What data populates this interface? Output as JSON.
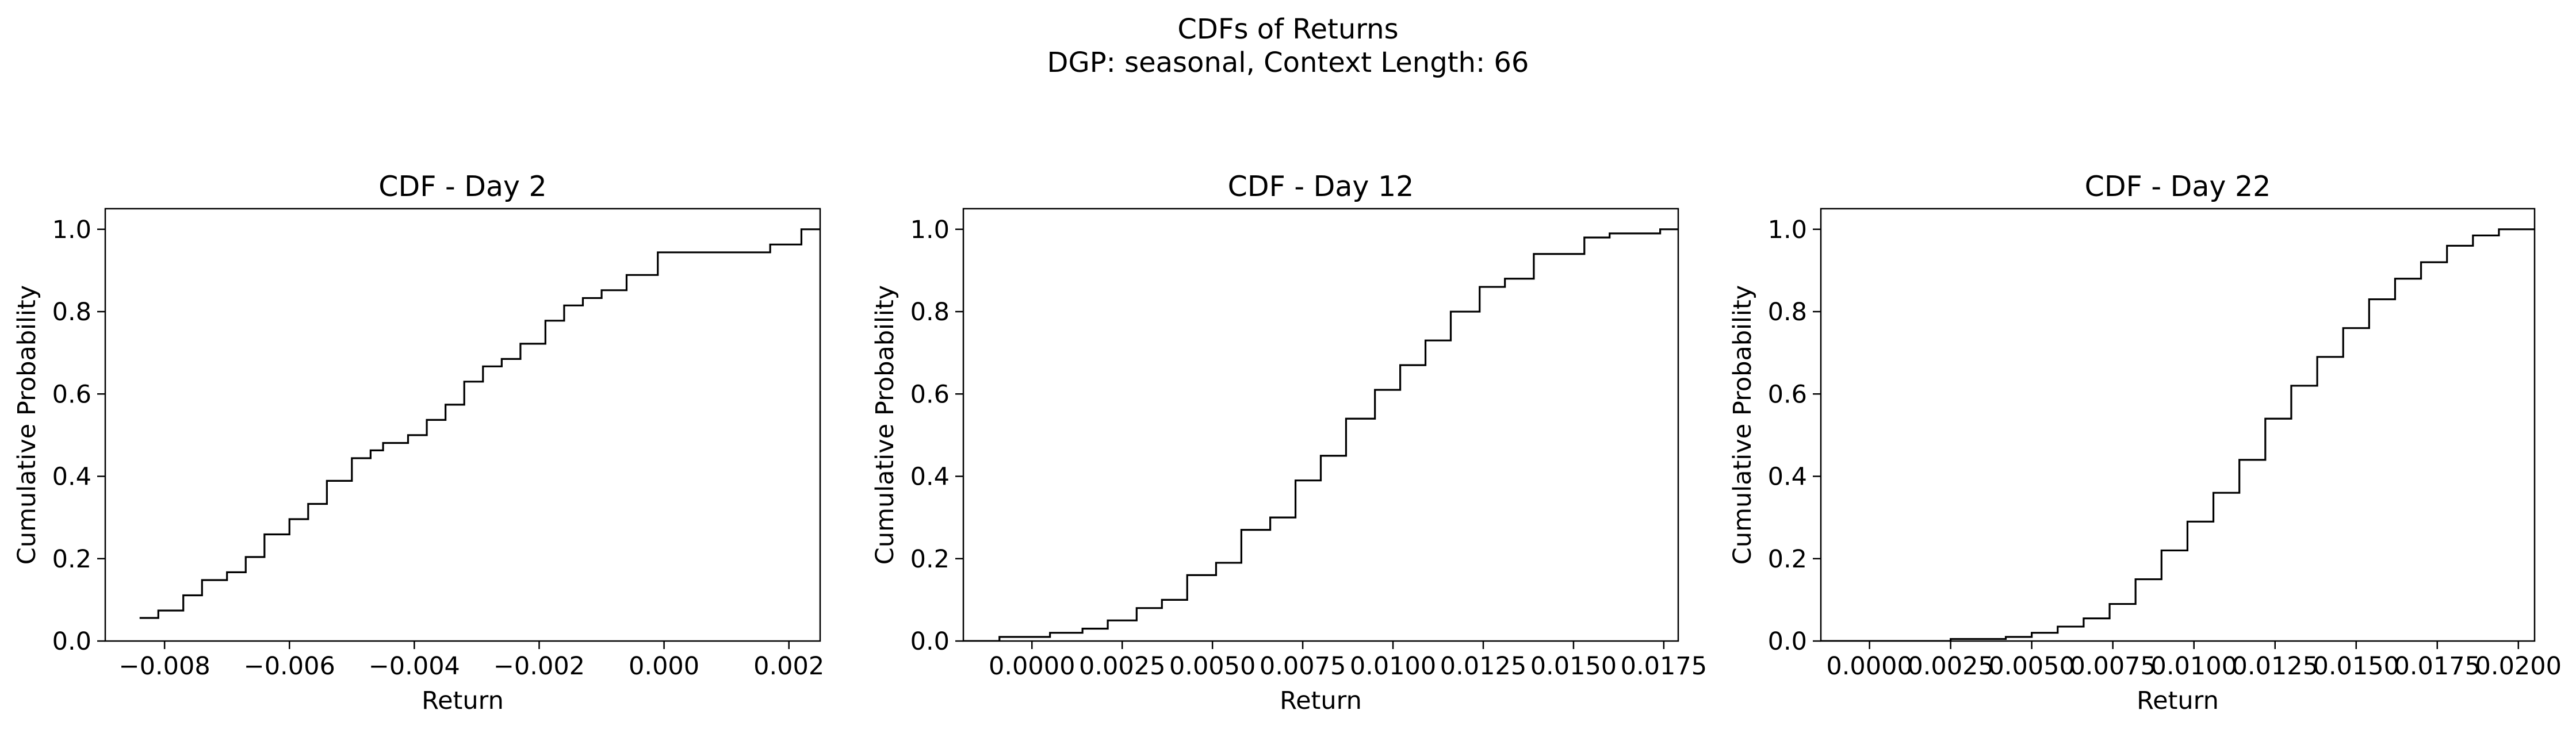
{
  "figure": {
    "title": "CDFs of Returns",
    "subtitle": "DGP: seasonal, Context Length: 66"
  },
  "chart_data": [
    {
      "type": "line",
      "step": "post",
      "title": "CDF - Day 2",
      "xlabel": "Return",
      "ylabel": "Cumulative Probability",
      "xlim": [
        -0.00895,
        0.0025
      ],
      "ylim": [
        0,
        1.05
      ],
      "xticks": [
        -0.008,
        -0.006,
        -0.004,
        -0.002,
        0.0,
        0.002
      ],
      "xtick_labels": [
        "−0.008",
        "−0.006",
        "−0.004",
        "−0.002",
        "0.000",
        "0.002"
      ],
      "yticks": [
        0.0,
        0.2,
        0.4,
        0.6,
        0.8,
        1.0
      ],
      "ytick_labels": [
        "0.0",
        "0.2",
        "0.4",
        "0.6",
        "0.8",
        "1.0"
      ],
      "grid": false,
      "color": "#000000",
      "x": [
        -0.0084,
        -0.0081,
        -0.0077,
        -0.0074,
        -0.007,
        -0.0067,
        -0.0064,
        -0.006,
        -0.0057,
        -0.0054,
        -0.005,
        -0.0047,
        -0.0045,
        -0.0041,
        -0.0038,
        -0.0035,
        -0.0032,
        -0.0029,
        -0.0026,
        -0.0023,
        -0.0019,
        -0.0016,
        -0.0013,
        -0.001,
        -0.0006,
        -0.0001,
        0.0017,
        0.0022
      ],
      "y": [
        0.056,
        0.074,
        0.111,
        0.148,
        0.167,
        0.204,
        0.259,
        0.296,
        0.333,
        0.389,
        0.444,
        0.463,
        0.481,
        0.5,
        0.537,
        0.574,
        0.63,
        0.667,
        0.685,
        0.722,
        0.778,
        0.815,
        0.833,
        0.852,
        0.889,
        0.944,
        0.963,
        1.0
      ]
    },
    {
      "type": "line",
      "step": "post",
      "title": "CDF - Day 12",
      "xlabel": "Return",
      "ylabel": "Cumulative Probability",
      "xlim": [
        -0.0019,
        0.0179
      ],
      "ylim": [
        0,
        1.05
      ],
      "xticks": [
        0.0,
        0.0025,
        0.005,
        0.0075,
        0.01,
        0.0125,
        0.015,
        0.0175
      ],
      "xtick_labels": [
        "0.0000",
        "0.0025",
        "0.0050",
        "0.0075",
        "0.0100",
        "0.0125",
        "0.0150",
        "0.0175"
      ],
      "yticks": [
        0.0,
        0.2,
        0.4,
        0.6,
        0.8,
        1.0
      ],
      "ytick_labels": [
        "0.0",
        "0.2",
        "0.4",
        "0.6",
        "0.8",
        "1.0"
      ],
      "grid": false,
      "color": "#000000",
      "x": [
        -0.0019,
        -0.0009,
        0.0005,
        0.0014,
        0.0021,
        0.0029,
        0.0036,
        0.0043,
        0.0051,
        0.0058,
        0.0066,
        0.0073,
        0.008,
        0.0087,
        0.0095,
        0.0102,
        0.0109,
        0.0116,
        0.0124,
        0.0131,
        0.0139,
        0.0153,
        0.016,
        0.0174
      ],
      "y": [
        0.0,
        0.01,
        0.02,
        0.03,
        0.05,
        0.08,
        0.1,
        0.16,
        0.19,
        0.27,
        0.3,
        0.39,
        0.45,
        0.54,
        0.61,
        0.67,
        0.73,
        0.8,
        0.86,
        0.88,
        0.94,
        0.98,
        0.99,
        1.0
      ]
    },
    {
      "type": "line",
      "step": "post",
      "title": "CDF - Day 22",
      "xlabel": "Return",
      "ylabel": "Cumulative Probability",
      "xlim": [
        -0.0015,
        0.0205
      ],
      "ylim": [
        0,
        1.05
      ],
      "xticks": [
        0.0,
        0.0025,
        0.005,
        0.0075,
        0.01,
        0.0125,
        0.015,
        0.0175,
        0.02
      ],
      "xtick_labels": [
        "0.0000",
        "0.0025",
        "0.0050",
        "0.0075",
        "0.0100",
        "0.0125",
        "0.0150",
        "0.0175",
        "0.0200"
      ],
      "yticks": [
        0.0,
        0.2,
        0.4,
        0.6,
        0.8,
        1.0
      ],
      "ytick_labels": [
        "0.0",
        "0.2",
        "0.4",
        "0.6",
        "0.8",
        "1.0"
      ],
      "grid": false,
      "color": "#000000",
      "x": [
        -0.0015,
        0.0025,
        0.0042,
        0.005,
        0.0058,
        0.0066,
        0.0074,
        0.0082,
        0.009,
        0.0098,
        0.0106,
        0.0114,
        0.0122,
        0.013,
        0.0138,
        0.0146,
        0.0154,
        0.0162,
        0.017,
        0.0178,
        0.0186,
        0.0194
      ],
      "y": [
        0.0,
        0.005,
        0.01,
        0.02,
        0.035,
        0.055,
        0.09,
        0.15,
        0.22,
        0.29,
        0.36,
        0.44,
        0.54,
        0.62,
        0.69,
        0.76,
        0.83,
        0.88,
        0.92,
        0.96,
        0.985,
        1.0
      ]
    }
  ]
}
